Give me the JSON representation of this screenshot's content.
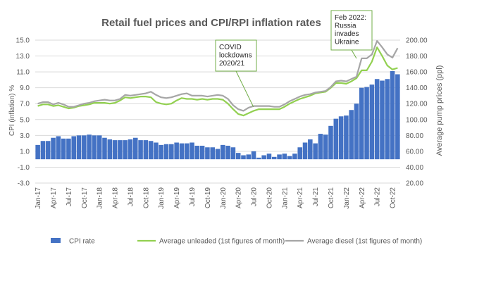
{
  "chart_data": {
    "type": "bar+line",
    "title": "Retail fuel prices and CPI/RPI inflation rates",
    "ylabel_left": "CPI (inflation) %",
    "ylabel_right": "Average pump prices (ppl)",
    "ylim_left": [
      -3.0,
      15.0
    ],
    "yticks_left": [
      "-3.0",
      "-1.0",
      "1.0",
      "3.0",
      "5.0",
      "7.0",
      "9.0",
      "11.0",
      "13.0",
      "15.0"
    ],
    "ylim_right": [
      20,
      200
    ],
    "yticks_right": [
      "20.00",
      "40.00",
      "60.00",
      "80.00",
      "100.00",
      "120.00",
      "140.00",
      "160.00",
      "180.00",
      "200.00"
    ],
    "x_tick_labels": [
      "Jan-17",
      "Apr-17",
      "Jul-17",
      "Oct-17",
      "Jan-18",
      "Apr-18",
      "Jul-18",
      "Oct-18",
      "Jan-19",
      "Apr-19",
      "Jul-19",
      "Oct-19",
      "Jan-20",
      "Apr-20",
      "Jul-20",
      "Oct-20",
      "Jan-21",
      "Apr-21",
      "Jul-21",
      "Oct-21",
      "Jan-22",
      "Apr-22",
      "Jul-22",
      "Oct-22"
    ],
    "grid": true,
    "legend_position": "bottom",
    "months": [
      "Jan-17",
      "Feb-17",
      "Mar-17",
      "Apr-17",
      "May-17",
      "Jun-17",
      "Jul-17",
      "Aug-17",
      "Sep-17",
      "Oct-17",
      "Nov-17",
      "Dec-17",
      "Jan-18",
      "Feb-18",
      "Mar-18",
      "Apr-18",
      "May-18",
      "Jun-18",
      "Jul-18",
      "Aug-18",
      "Sep-18",
      "Oct-18",
      "Nov-18",
      "Dec-18",
      "Jan-19",
      "Feb-19",
      "Mar-19",
      "Apr-19",
      "May-19",
      "Jun-19",
      "Jul-19",
      "Aug-19",
      "Sep-19",
      "Oct-19",
      "Nov-19",
      "Dec-19",
      "Jan-20",
      "Feb-20",
      "Mar-20",
      "Apr-20",
      "May-20",
      "Jun-20",
      "Jul-20",
      "Aug-20",
      "Sep-20",
      "Oct-20",
      "Nov-20",
      "Dec-20",
      "Jan-21",
      "Feb-21",
      "Mar-21",
      "Apr-21",
      "May-21",
      "Jun-21",
      "Jul-21",
      "Aug-21",
      "Sep-21",
      "Oct-21",
      "Nov-21",
      "Dec-21",
      "Jan-22",
      "Feb-22",
      "Mar-22",
      "Apr-22",
      "May-22",
      "Jun-22",
      "Jul-22",
      "Aug-22",
      "Sep-22",
      "Oct-22",
      "Nov-22"
    ],
    "series": [
      {
        "name": "CPI rate",
        "kind": "bar",
        "axis": "left",
        "color": "#4472c4",
        "values": [
          1.8,
          2.3,
          2.3,
          2.7,
          2.9,
          2.6,
          2.6,
          2.9,
          3.0,
          3.0,
          3.1,
          3.0,
          3.0,
          2.7,
          2.5,
          2.4,
          2.4,
          2.4,
          2.5,
          2.7,
          2.4,
          2.4,
          2.3,
          2.1,
          1.8,
          1.9,
          1.9,
          2.1,
          2.0,
          2.0,
          2.1,
          1.7,
          1.7,
          1.5,
          1.5,
          1.3,
          1.8,
          1.7,
          1.5,
          0.8,
          0.5,
          0.6,
          1.0,
          0.2,
          0.5,
          0.7,
          0.3,
          0.6,
          0.7,
          0.4,
          0.7,
          1.5,
          2.1,
          2.5,
          2.0,
          3.2,
          3.1,
          4.2,
          5.1,
          5.4,
          5.5,
          6.2,
          7.0,
          9.0,
          9.1,
          9.4,
          10.1,
          9.9,
          10.1,
          11.1,
          10.7
        ]
      },
      {
        "name": "Average unleaded (1st figures of month)",
        "kind": "line",
        "axis": "right",
        "color": "#92d050",
        "values": [
          117,
          119,
          119,
          117,
          118,
          116,
          114,
          115,
          117,
          118,
          119,
          121,
          121,
          121,
          120,
          121,
          124,
          128,
          127,
          128,
          129,
          129,
          128,
          122,
          120,
          119,
          120,
          124,
          127,
          126,
          126,
          125,
          126,
          125,
          126,
          126,
          125,
          120,
          113,
          107,
          105,
          108,
          111,
          113,
          113,
          113,
          113,
          113,
          116,
          120,
          123,
          126,
          128,
          130,
          133,
          134,
          135,
          140,
          146,
          146,
          145,
          148,
          152,
          162,
          162,
          173,
          191,
          180,
          168,
          163,
          165
        ]
      },
      {
        "name": "Average diesel (1st figures of month)",
        "kind": "line",
        "axis": "right",
        "color": "#a6a6a6",
        "values": [
          120,
          122,
          122,
          119,
          121,
          119,
          116,
          116,
          118,
          120,
          121,
          123,
          124,
          125,
          124,
          124,
          126,
          131,
          130,
          131,
          132,
          133,
          135,
          131,
          128,
          127,
          128,
          130,
          132,
          133,
          130,
          130,
          130,
          129,
          130,
          131,
          130,
          126,
          118,
          113,
          111,
          115,
          117,
          117,
          117,
          117,
          116,
          116,
          119,
          123,
          126,
          129,
          131,
          132,
          134,
          135,
          136,
          141,
          148,
          149,
          148,
          151,
          154,
          177,
          177,
          182,
          199,
          191,
          182,
          178,
          190
        ]
      }
    ],
    "annotations": [
      {
        "id": "covid",
        "text_lines": [
          "COVID",
          "lockdowns",
          "2020/21"
        ],
        "target_month": "Sep-20"
      },
      {
        "id": "russia",
        "text_lines": [
          "Feb 2022:",
          "Russia",
          "invades",
          "Ukraine"
        ],
        "target_month": "Mar-22"
      }
    ]
  }
}
